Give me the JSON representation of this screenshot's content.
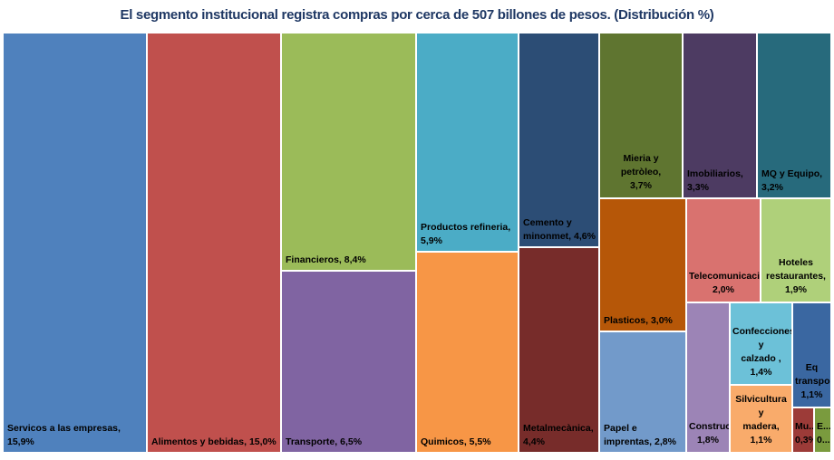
{
  "chart_data": {
    "type": "treemap",
    "title": "El segmento institucional registra compras por cerca de 507 billones de pesos. (Distribución %)",
    "unit": "%",
    "items": [
      {
        "name": "Servicos a las empresas",
        "label": "Servicos a las empresas, 15,9%",
        "value": 15.9,
        "color": "#4f81bd"
      },
      {
        "name": "Alimentos y bebidas",
        "label": "Alimentos y bebidas, 15,0%",
        "value": 15.0,
        "color": "#c0504d"
      },
      {
        "name": "Financieros",
        "label": "Financieros, 8,4%",
        "value": 8.4,
        "color": "#9bbb59"
      },
      {
        "name": "Transporte",
        "label": "Transporte, 6,5%",
        "value": 6.5,
        "color": "#8064a2"
      },
      {
        "name": "Productos refineria",
        "label": "Productos refineria, 5,9%",
        "value": 5.9,
        "color": "#4bacc6"
      },
      {
        "name": "Quimicos",
        "label": "Quimicos, 5,5%",
        "value": 5.5,
        "color": "#f79646"
      },
      {
        "name": "Cemento y minonmet",
        "label": "Cemento y\nminonmet, 4,6%",
        "value": 4.6,
        "color": "#2c4d75"
      },
      {
        "name": "Metalmecànica",
        "label": "Metalmecànica, 4,4%",
        "value": 4.4,
        "color": "#772c2a"
      },
      {
        "name": "Mieria y petròleo",
        "label": "Mieria y petròleo,\n3,7%",
        "value": 3.7,
        "color": "#5f7530"
      },
      {
        "name": "Imobiliarios",
        "label": "Imobiliarios, 3,3%",
        "value": 3.3,
        "color": "#4d3b62"
      },
      {
        "name": "MQ y Equipo",
        "label": "MQ y Equipo, 3,2%",
        "value": 3.2,
        "color": "#276a7c"
      },
      {
        "name": "Plasticos",
        "label": "Plasticos, 3,0%",
        "value": 3.0,
        "color": "#b65708"
      },
      {
        "name": "Papel e imprentas",
        "label": "Papel e imprentas, 2,8%",
        "value": 2.8,
        "color": "#729aca"
      },
      {
        "name": "Telecomunicacion...",
        "label": "Telecomunicacion...\n2,0%",
        "value": 2.0,
        "color": "#d9726f"
      },
      {
        "name": "Hoteles restaurantes",
        "label": "Hoteles\nrestaurantes, 1,9%",
        "value": 1.9,
        "color": "#afd07a"
      },
      {
        "name": "Construcc...",
        "label": "Construcc...\n1,8%",
        "value": 1.8,
        "color": "#9c84b6"
      },
      {
        "name": "Confecciones y calzado",
        "label": "Confecciones y\ncalzado , 1,4%",
        "value": 1.4,
        "color": "#6cc1d8"
      },
      {
        "name": "Silvicultura y madera",
        "label": "Silvicultura y\nmadera, 1,1%",
        "value": 1.1,
        "color": "#f9ab6b"
      },
      {
        "name": "Eq transpo...",
        "label": "Eq\ntranspo...\n1,1%",
        "value": 1.1,
        "color": "#3a67a1"
      },
      {
        "name": "Mu...",
        "label": "Mu...\n0,3%",
        "value": 0.3,
        "color": "#9c3b38"
      },
      {
        "name": "E...",
        "label": "E...\n0...",
        "value": 0.3,
        "color": "#7a9b3e"
      }
    ]
  }
}
